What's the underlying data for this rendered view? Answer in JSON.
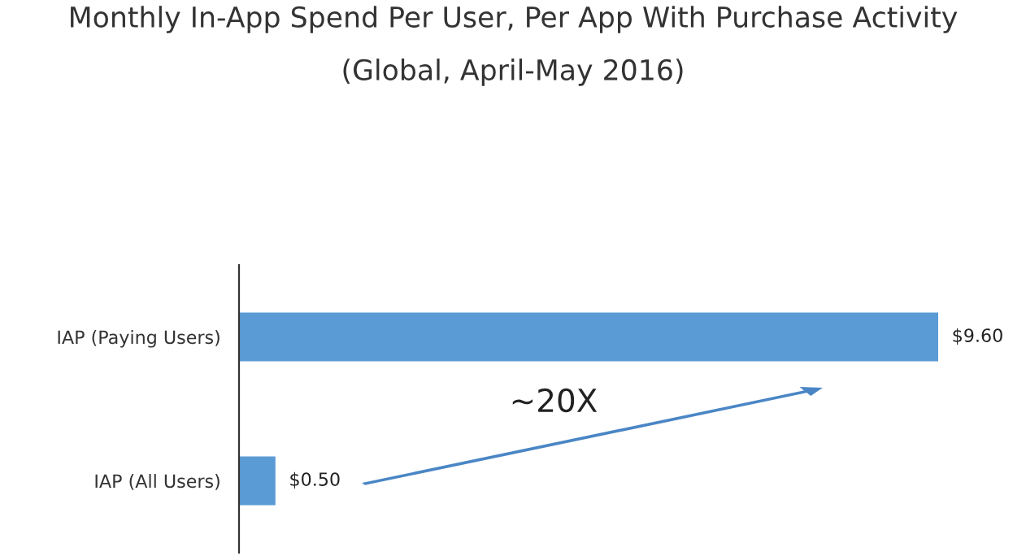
{
  "chart_data": {
    "type": "bar",
    "orientation": "horizontal",
    "title": "Monthly In-App Spend Per User, Per App With Purchase Activity",
    "subtitle": "(Global, April-May 2016)",
    "categories": [
      "IAP (Paying Users)",
      "IAP (All Users)"
    ],
    "values": [
      9.6,
      0.5
    ],
    "value_labels": [
      "$9.60",
      "$0.50"
    ],
    "color": "#5b9bd5",
    "annotations": [
      "~20X"
    ]
  }
}
